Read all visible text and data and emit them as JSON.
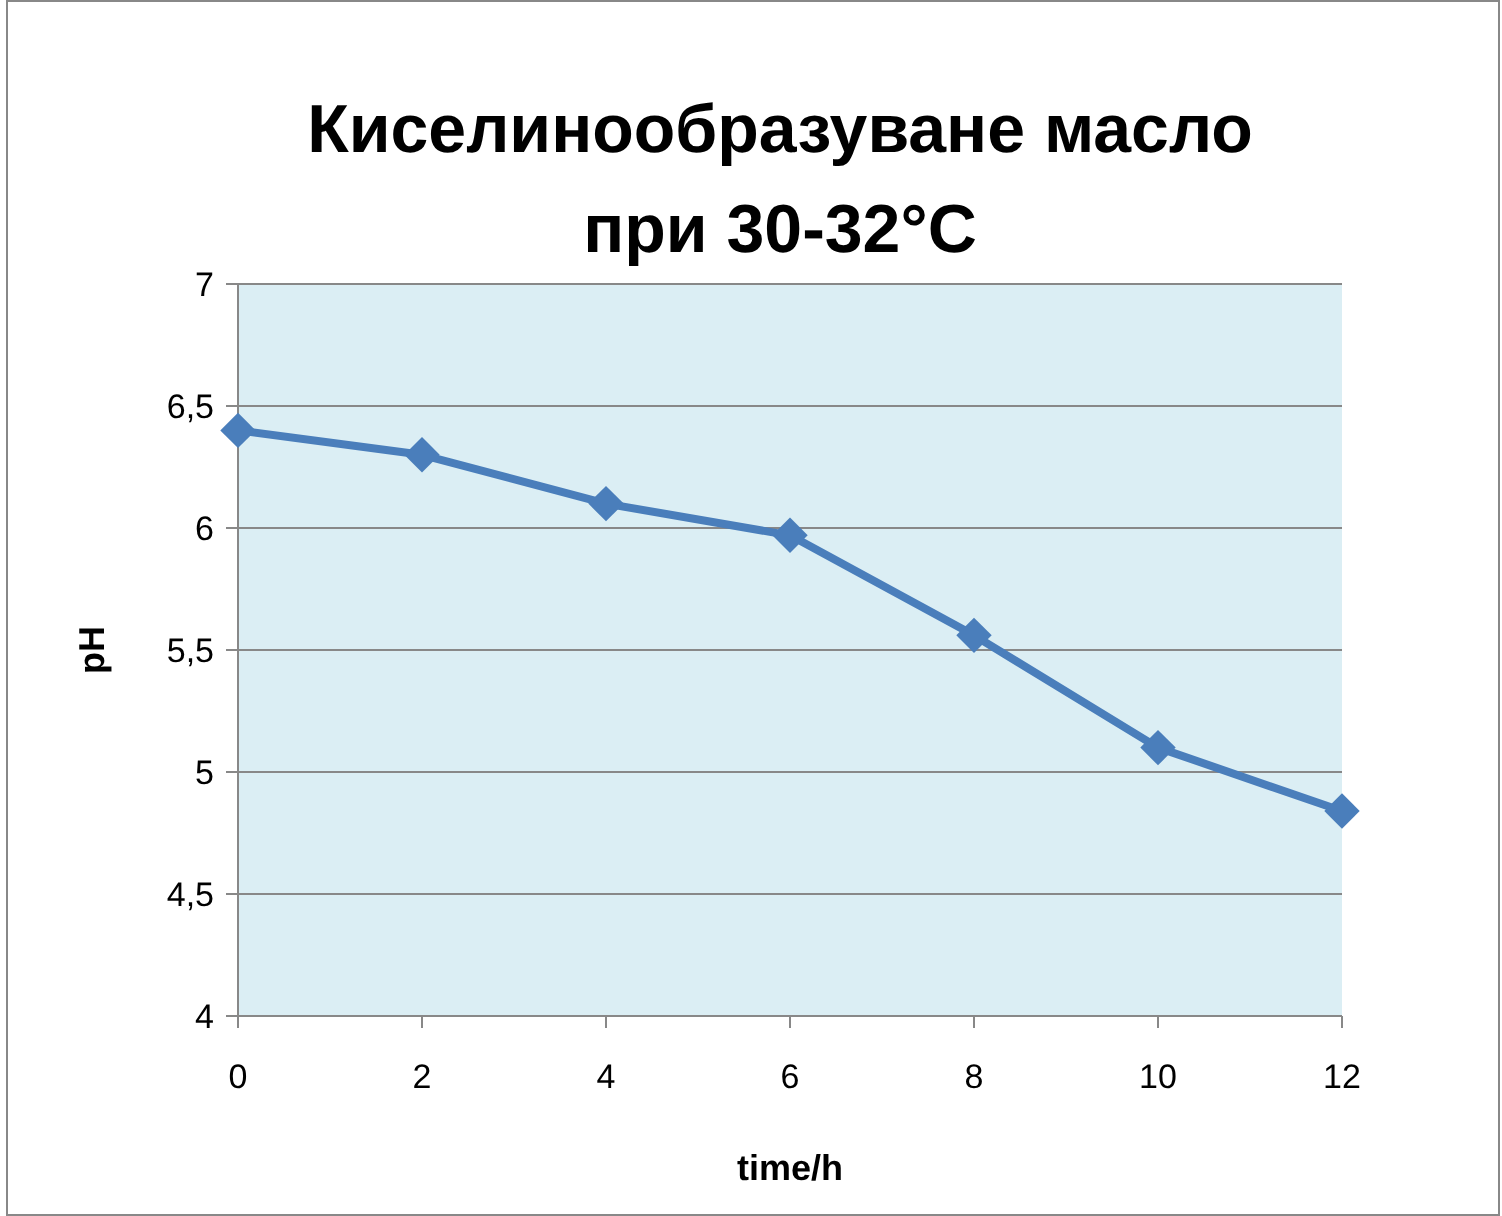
{
  "chart_data": {
    "type": "line",
    "title": "Киселинообразуване масло при 30-32°C",
    "xlabel": "time/h",
    "ylabel": "pH",
    "x": [
      0,
      2,
      4,
      6,
      8,
      10,
      12
    ],
    "series": [
      {
        "color": "#4a7ebb",
        "values": [
          6.4,
          6.3,
          6.1,
          5.97,
          5.56,
          5.1,
          4.84
        ]
      }
    ],
    "xlim": [
      0,
      12
    ],
    "xticks": [
      0,
      2,
      4,
      6,
      8,
      10,
      12
    ],
    "ylim": [
      4,
      7
    ],
    "yticks": [
      4,
      {
        "value": 4.5,
        "label": "4,5"
      },
      5,
      {
        "value": 5.5,
        "label": "5,5"
      },
      6,
      {
        "value": 6.5,
        "label": "6,5"
      },
      7
    ],
    "grid": "y",
    "marker": "diamond",
    "line_style": "solid"
  }
}
